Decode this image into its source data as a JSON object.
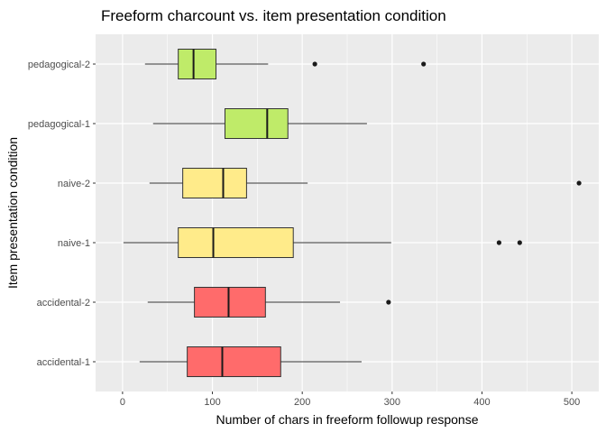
{
  "chart_data": {
    "type": "boxplot",
    "orientation": "horizontal",
    "title": "Freeform charcount vs. item presentation condition",
    "xlabel": "Number of chars in freeform followup response",
    "ylabel": "Item presentation condition",
    "xlim": [
      -30,
      530
    ],
    "xticks": [
      0,
      100,
      200,
      300,
      400,
      500
    ],
    "grid": true,
    "legend": "none",
    "colors": {
      "panel_bg": "#ebebeb",
      "grid": "#ffffff",
      "pedagogical": "#bfeb69",
      "naive": "#ffeb8a",
      "accidental": "#ff6b6b"
    },
    "categories": [
      "accidental-1",
      "accidental-2",
      "naive-1",
      "naive-2",
      "pedagogical-1",
      "pedagogical-2"
    ],
    "boxes": [
      {
        "category": "accidental-1",
        "color_key": "accidental",
        "whisker_low": 19,
        "q1": 72,
        "median": 111,
        "q3": 176,
        "whisker_high": 266,
        "outliers": []
      },
      {
        "category": "accidental-2",
        "color_key": "accidental",
        "whisker_low": 28,
        "q1": 80,
        "median": 118,
        "q3": 159,
        "whisker_high": 242,
        "outliers": [
          296
        ]
      },
      {
        "category": "naive-1",
        "color_key": "naive",
        "whisker_low": 1,
        "q1": 62,
        "median": 101,
        "q3": 190,
        "whisker_high": 299,
        "outliers": [
          419,
          442
        ]
      },
      {
        "category": "naive-2",
        "color_key": "naive",
        "whisker_low": 30,
        "q1": 67,
        "median": 112,
        "q3": 138,
        "whisker_high": 206,
        "outliers": [
          508
        ]
      },
      {
        "category": "pedagogical-1",
        "color_key": "pedagogical",
        "whisker_low": 34,
        "q1": 114,
        "median": 161,
        "q3": 184,
        "whisker_high": 272,
        "outliers": []
      },
      {
        "category": "pedagogical-2",
        "color_key": "pedagogical",
        "whisker_low": 25,
        "q1": 62,
        "median": 79,
        "q3": 104,
        "whisker_high": 162,
        "outliers": [
          214,
          335
        ]
      }
    ]
  }
}
